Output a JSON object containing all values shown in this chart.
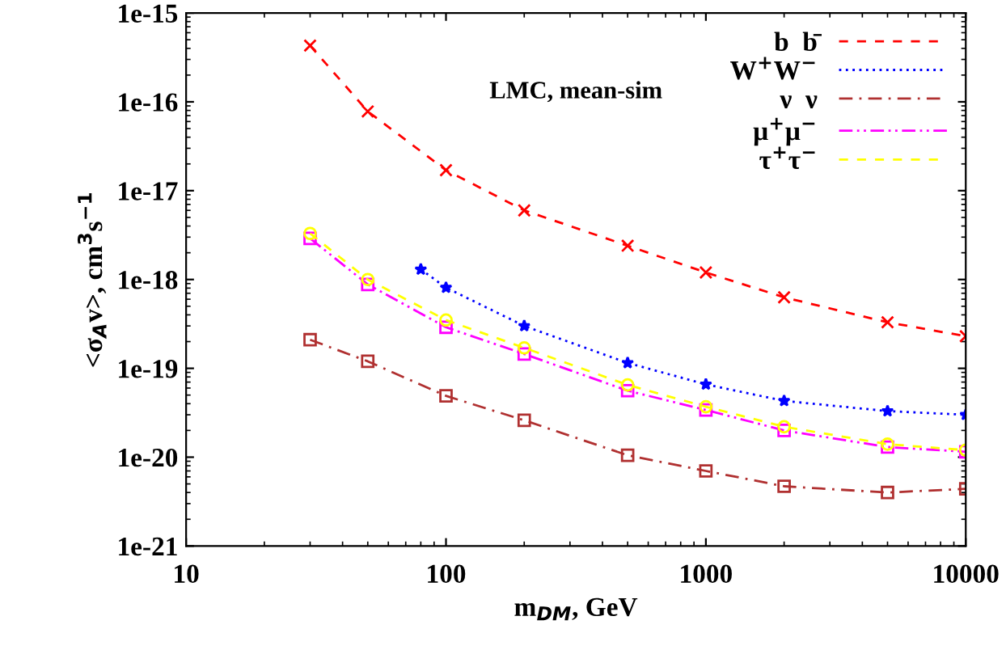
{
  "chart_data": {
    "type": "line",
    "xlabel": "m$_{DM}$, GeV",
    "ylabel": "<σ$_{A}$v>, cm$^{3}$s$^{−1}$",
    "annotations": [
      "LMC, mean-sim"
    ],
    "log": "xy",
    "xlim": [
      10,
      10000
    ],
    "ylim": [
      1e-21,
      1e-15
    ],
    "xticks": [
      10,
      100,
      1000,
      10000
    ],
    "yticks": [
      {
        "value": 1e-21,
        "label": "1e-21"
      },
      {
        "value": 1e-20,
        "label": "1e-20"
      },
      {
        "value": 1e-19,
        "label": "1e-19"
      },
      {
        "value": 1e-18,
        "label": "1e-18"
      },
      {
        "value": 1e-17,
        "label": "1e-17"
      },
      {
        "value": 1e-16,
        "label": "1e-16"
      },
      {
        "value": 1e-15,
        "label": "1e-15"
      }
    ],
    "grid": false,
    "legend": "top right",
    "series": [
      {
        "name": "b  b̄",
        "color": "#ff0000",
        "marker": "cross",
        "line_style": "dashed",
        "x": [
          30,
          50,
          100,
          200,
          500,
          1000,
          2000,
          5000,
          10000
        ],
        "values": [
          4.3e-16,
          7.8e-17,
          1.7e-17,
          6e-18,
          2.4e-18,
          1.2e-18,
          6.3e-19,
          3.3e-19,
          2.3e-19
        ]
      },
      {
        "name": "W$^{+}$W$^{−}$",
        "color": "#0000ff",
        "marker": "star",
        "line_style": "dotted",
        "x": [
          80,
          100,
          200,
          500,
          1000,
          2000,
          5000,
          10000
        ],
        "values": [
          1.3e-18,
          8.1e-19,
          3e-19,
          1.15e-19,
          6.6e-20,
          4.3e-20,
          3.3e-20,
          3e-20
        ]
      },
      {
        "name": "ν  ν",
        "color": "#b03030",
        "marker": "square",
        "line_style": "dashdot",
        "x": [
          30,
          50,
          100,
          200,
          500,
          1000,
          2000,
          5000,
          10000
        ],
        "values": [
          2.1e-19,
          1.2e-19,
          4.9e-20,
          2.6e-20,
          1.05e-20,
          7e-21,
          4.7e-21,
          4e-21,
          4.4e-21
        ]
      },
      {
        "name": "μ$^{+}$μ$^{−}$",
        "color": "#ff00ff",
        "marker": "square",
        "line_style": "dashdotdot",
        "x": [
          30,
          50,
          100,
          200,
          500,
          1000,
          2000,
          5000,
          10000
        ],
        "values": [
          2.9e-18,
          8.8e-19,
          2.9e-19,
          1.45e-19,
          5.6e-20,
          3.4e-20,
          2e-20,
          1.3e-20,
          1.15e-20
        ]
      },
      {
        "name": "τ$^{+}$τ$^{−}$",
        "color": "#ffff00",
        "marker": "circle",
        "line_style": "dashed",
        "x": [
          30,
          50,
          100,
          200,
          500,
          1000,
          2000,
          5000,
          10000
        ],
        "values": [
          3.3e-18,
          1e-18,
          3.5e-19,
          1.7e-19,
          6.5e-20,
          3.7e-20,
          2.2e-20,
          1.4e-20,
          1.2e-20
        ]
      }
    ]
  }
}
